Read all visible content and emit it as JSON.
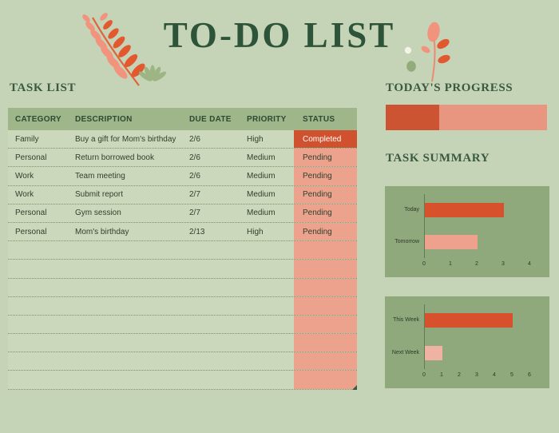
{
  "title": "TO-DO LIST",
  "colors": {
    "background": "#c5d3b6",
    "title_green": "#2d5438",
    "heading_green": "#3a5a41",
    "table_header_bg": "#9eb689",
    "row_bg": "#cbd8bb",
    "row_line": "#7d9268",
    "status_pending_bg": "#eca28c",
    "status_completed_bg": "#d0512e",
    "progress_fill": "#cc5433",
    "progress_track": "#e99681",
    "chart_panel_bg": "#8fa87c",
    "accent_orange": "#d8512d",
    "accent_salmon": "#eea28d"
  },
  "task_list": {
    "heading": "TASK LIST",
    "columns": [
      "CATEGORY",
      "DESCRIPTION",
      "DUE DATE",
      "PRIORITY",
      "STATUS"
    ],
    "rows": [
      {
        "category": "Family",
        "description": "Buy a gift for Mom's birthday",
        "due_date": "2/6",
        "priority": "High",
        "status": "Completed"
      },
      {
        "category": "Personal",
        "description": "Return borrowed book",
        "due_date": "2/6",
        "priority": "Medium",
        "status": "Pending"
      },
      {
        "category": "Work",
        "description": "Team meeting",
        "due_date": "2/6",
        "priority": "Medium",
        "status": "Pending"
      },
      {
        "category": "Work",
        "description": "Submit report",
        "due_date": "2/7",
        "priority": "Medium",
        "status": "Pending"
      },
      {
        "category": "Personal",
        "description": "Gym session",
        "due_date": "2/7",
        "priority": "Medium",
        "status": "Pending"
      },
      {
        "category": "Personal",
        "description": "Mom's birthday",
        "due_date": "2/13",
        "priority": "High",
        "status": "Pending"
      }
    ],
    "empty_row_count": 8,
    "status_styles": {
      "Completed": {
        "bg": "#d0512e",
        "color": "#ffffff"
      },
      "Pending": {
        "bg": "#eca28c",
        "color": "#30402f"
      },
      "empty_bg": "#eca28c"
    }
  },
  "progress": {
    "heading": "TODAY'S PROGRESS",
    "percent": 33
  },
  "summary": {
    "heading": "TASK SUMMARY"
  },
  "chart_data": [
    {
      "type": "bar",
      "orientation": "horizontal",
      "categories": [
        "Today",
        "Tomorrow"
      ],
      "values": [
        3,
        2
      ],
      "bar_colors": [
        "#d8512d",
        "#eea28d"
      ],
      "xlim": [
        0,
        4
      ],
      "xticks": [
        0,
        1,
        2,
        3,
        4
      ],
      "grid": false,
      "legend": "none"
    },
    {
      "type": "bar",
      "orientation": "horizontal",
      "categories": [
        "This Week",
        "Next Week"
      ],
      "values": [
        5,
        1
      ],
      "bar_colors": [
        "#d8512d",
        "#f0b2a2"
      ],
      "xlim": [
        0,
        6
      ],
      "xticks": [
        0,
        1,
        2,
        3,
        4,
        5,
        6
      ],
      "grid": false,
      "legend": "none"
    }
  ]
}
